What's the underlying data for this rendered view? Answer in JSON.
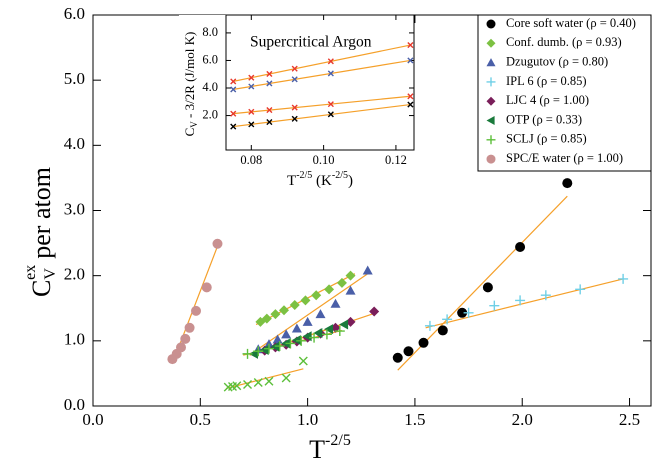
{
  "chart_data": [
    {
      "type": "scatter",
      "xlabel": [
        "T",
        "-2/5"
      ],
      "ylabel": [
        "C",
        "V",
        "ex",
        "per atom"
      ],
      "xlim": [
        0,
        2.6
      ],
      "ylim": [
        0,
        6
      ],
      "xticks": [
        {
          "value": 0,
          "label": "0.0"
        },
        0.5,
        {
          "value": 1,
          "label": "1.0"
        },
        1.5,
        {
          "value": 2,
          "label": "2.0"
        },
        2.5
      ],
      "yticks": [
        {
          "value": 0,
          "label": "0.0"
        },
        {
          "value": 1,
          "label": "1.0"
        },
        {
          "value": 2,
          "label": "2.0"
        },
        {
          "value": 3,
          "label": "3.0"
        },
        {
          "value": 4,
          "label": "4.0"
        },
        {
          "value": 5,
          "label": "5.0"
        },
        {
          "value": 6,
          "label": "6.0"
        }
      ],
      "legend": "upper right",
      "fit_color": "#f5a02a",
      "series": [
        {
          "name": "Core soft water (ρ = 0.40)",
          "color": "#000000",
          "marker": "circle",
          "x": [
            1.42,
            1.47,
            1.54,
            1.63,
            1.72,
            1.84,
            1.99,
            2.21
          ],
          "values": [
            0.74,
            0.84,
            0.97,
            1.16,
            1.43,
            1.82,
            2.44,
            3.42
          ],
          "fit_x": [
            1.42,
            2.21
          ],
          "fit_y": [
            0.55,
            3.22
          ]
        },
        {
          "name": "Conf. dumb. (ρ = 0.93)",
          "color": "#7cc142",
          "marker": "diamond",
          "x": [
            0.78,
            0.81,
            0.85,
            0.89,
            0.94,
            0.99,
            1.04,
            1.1,
            1.16,
            1.2
          ],
          "values": [
            1.29,
            1.34,
            1.41,
            1.47,
            1.55,
            1.62,
            1.7,
            1.79,
            1.89,
            2.0
          ],
          "fit_x": [
            0.76,
            1.22
          ],
          "fit_y": [
            1.25,
            2.03
          ]
        },
        {
          "name": "Dzugutov (ρ = 0.80)",
          "color": "#4a5fa8",
          "marker": "triangle-up",
          "x": [
            0.77,
            0.82,
            0.86,
            0.9,
            0.95,
            1.0,
            1.06,
            1.13,
            1.2,
            1.28
          ],
          "values": [
            0.87,
            0.95,
            1.02,
            1.1,
            1.19,
            1.29,
            1.41,
            1.57,
            1.77,
            2.08
          ],
          "fit_x": [
            0.75,
            1.28
          ],
          "fit_y": [
            0.83,
            2.03
          ]
        },
        {
          "name": "IPL 6 (ρ = 0.85)",
          "color": "#6fcfe6",
          "marker": "plus",
          "x": [
            1.57,
            1.65,
            1.75,
            1.87,
            1.99,
            2.11,
            2.27,
            2.47
          ],
          "values": [
            1.23,
            1.33,
            1.43,
            1.54,
            1.62,
            1.7,
            1.79,
            1.95
          ],
          "fit_x": [
            1.55,
            2.47
          ],
          "fit_y": [
            1.2,
            1.95
          ]
        },
        {
          "name": "LJC 4 (ρ = 1.00)",
          "color": "#7a1e5a",
          "marker": "diamond",
          "x": [
            0.8,
            0.85,
            0.9,
            0.95,
            1.0,
            1.06,
            1.13,
            1.2,
            1.31
          ],
          "values": [
            0.85,
            0.9,
            0.94,
            0.99,
            1.05,
            1.11,
            1.2,
            1.29,
            1.45
          ],
          "fit_x": [
            0.75,
            1.31
          ],
          "fit_y": [
            0.8,
            1.42
          ]
        },
        {
          "name": "OTP (ρ = 0.33)",
          "color": "#1a7a3c",
          "marker": "triangle-left",
          "x": [
            0.75,
            0.8,
            0.85,
            0.9,
            0.95,
            1.0,
            1.05,
            1.1,
            1.17
          ],
          "values": [
            0.8,
            0.86,
            0.91,
            0.96,
            1.01,
            1.07,
            1.12,
            1.18,
            1.25
          ],
          "fit_x": [
            0.73,
            1.18
          ],
          "fit_y": [
            0.78,
            1.27
          ]
        },
        {
          "name": "SCLJ (ρ = 0.85)",
          "color": "#5cbf3a",
          "marker": "plus",
          "x": [
            0.72,
            0.77,
            0.82,
            0.87,
            0.92,
            0.97,
            1.03,
            1.09,
            1.15
          ],
          "values": [
            0.8,
            0.84,
            0.88,
            0.92,
            0.96,
            1.0,
            1.05,
            1.1,
            1.15
          ],
          "fit_x": [
            0.7,
            1.16
          ],
          "fit_y": [
            0.78,
            1.16
          ]
        },
        {
          "name": "SPC/E water (ρ = 1.00)",
          "color": "#c99090",
          "marker": "circle",
          "x": [
            0.37,
            0.39,
            0.41,
            0.43,
            0.45,
            0.48,
            0.53,
            0.58
          ],
          "values": [
            0.72,
            0.8,
            0.9,
            1.03,
            1.2,
            1.46,
            1.82,
            2.49
          ],
          "fit_x": [
            0.37,
            0.58
          ],
          "fit_y": [
            0.65,
            2.45
          ]
        },
        {
          "color": "#5cbf3a",
          "marker": "x",
          "x": [
            0.63,
            0.65,
            0.67,
            0.72,
            0.77,
            0.82,
            0.9,
            0.98
          ],
          "values": [
            0.29,
            0.3,
            0.31,
            0.33,
            0.36,
            0.38,
            0.43,
            0.69
          ],
          "fit_x": [
            0.62,
            0.98
          ],
          "fit_y": [
            0.27,
            0.57
          ]
        }
      ]
    },
    {
      "type": "scatter",
      "title": "Supercritical Argon",
      "xlabel": [
        "T",
        "-2/5",
        " (K",
        "-2/5",
        ")"
      ],
      "ylabel": [
        "C",
        "V",
        " - 3/2R (J/mol K)"
      ],
      "xlim": [
        0.073,
        0.125
      ],
      "ylim": [
        -0.5,
        9.3
      ],
      "xticks": [
        0.08,
        {
          "value": 0.1,
          "label": "0.10"
        },
        0.12
      ],
      "yticks": [
        {
          "value": 2,
          "label": "2.0"
        },
        {
          "value": 4,
          "label": "4.0"
        },
        {
          "value": 6,
          "label": "6.0"
        },
        {
          "value": 8,
          "label": "8.0"
        }
      ],
      "fit_color": "#f5a02a",
      "series": [
        {
          "color": "#e8392c",
          "marker": "x",
          "x": [
            0.075,
            0.08,
            0.085,
            0.092,
            0.102,
            0.124
          ],
          "values": [
            4.48,
            4.75,
            5.02,
            5.4,
            5.94,
            7.12
          ],
          "fit_x": [
            0.075,
            0.124
          ],
          "fit_y": [
            4.48,
            7.12
          ]
        },
        {
          "color": "#4a5fa8",
          "marker": "x",
          "x": [
            0.075,
            0.08,
            0.085,
            0.092,
            0.102,
            0.124
          ],
          "values": [
            3.9,
            4.11,
            4.33,
            4.63,
            5.06,
            6.0
          ],
          "fit_x": [
            0.075,
            0.124
          ],
          "fit_y": [
            3.9,
            6.0
          ]
        },
        {
          "color": "#e8392c",
          "marker": "x",
          "x": [
            0.075,
            0.08,
            0.085,
            0.092,
            0.102,
            0.124
          ],
          "values": [
            2.14,
            2.27,
            2.4,
            2.58,
            2.83,
            3.4
          ],
          "fit_x": [
            0.075,
            0.124
          ],
          "fit_y": [
            2.14,
            3.4
          ]
        },
        {
          "color": "#000000",
          "marker": "x",
          "x": [
            0.075,
            0.08,
            0.085,
            0.092,
            0.102,
            0.124
          ],
          "values": [
            1.2,
            1.36,
            1.53,
            1.76,
            2.09,
            2.8
          ],
          "fit_x": [
            0.075,
            0.124
          ],
          "fit_y": [
            1.2,
            2.8
          ]
        }
      ]
    }
  ]
}
